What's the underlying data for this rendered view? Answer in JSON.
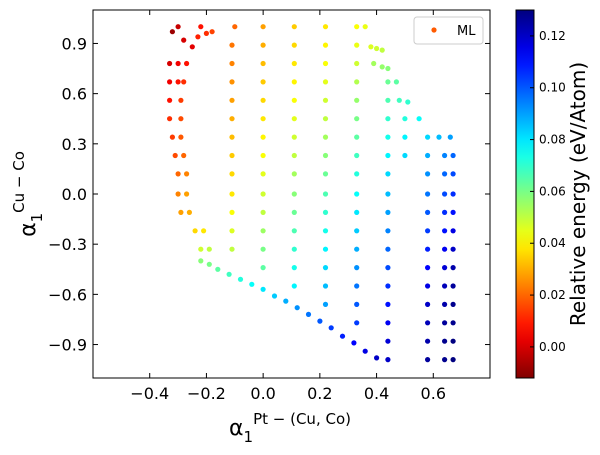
{
  "chart_data": {
    "type": "scatter",
    "xlim": [
      -0.6,
      0.8
    ],
    "ylim": [
      -1.1,
      1.1
    ],
    "xticks": [
      -0.4,
      -0.2,
      0.0,
      0.2,
      0.4,
      0.6
    ],
    "xtick_labels": [
      "−0.4",
      "−0.2",
      "0.0",
      "0.2",
      "0.4",
      "0.6"
    ],
    "yticks": [
      -0.9,
      -0.6,
      -0.3,
      0.0,
      0.3,
      0.6,
      0.9
    ],
    "ytick_labels": [
      "−0.9",
      "−0.6",
      "−0.3",
      "0.0",
      "0.3",
      "0.6",
      "0.9"
    ],
    "xlabel_base": "α",
    "xlabel_sub": "1",
    "xlabel_sup": "Pt − (Cu, Co)",
    "ylabel_base": "α",
    "ylabel_sub": "1",
    "ylabel_sup": "Cu − Co",
    "legend": {
      "label": "ML",
      "placement": "top-right"
    },
    "colorbar": {
      "label": "Relative energy (eV/Atom)",
      "colormap": "jet_r",
      "min": -0.012,
      "max": 0.13,
      "ticks": [
        0.0,
        0.02,
        0.04,
        0.06,
        0.08,
        0.1,
        0.12
      ],
      "tick_labels": [
        "0.00",
        "0.02",
        "0.04",
        "0.06",
        "0.08",
        "0.10",
        "0.12"
      ]
    },
    "marker_color_legend": "#ff5a00",
    "grid": false,
    "series": [
      {
        "points": [
          [
            -0.32,
            0.97,
            -0.008
          ],
          [
            -0.3,
            1.0,
            -0.002
          ],
          [
            -0.28,
            0.92,
            0.0
          ],
          [
            -0.25,
            0.88,
            0.002
          ],
          [
            -0.22,
            1.0,
            0.008
          ],
          [
            -0.2,
            0.96,
            0.012
          ],
          [
            -0.18,
            0.97,
            0.015
          ],
          [
            -0.23,
            0.94,
            0.01
          ],
          [
            -0.33,
            0.78,
            0.0
          ],
          [
            -0.3,
            0.78,
            0.004
          ],
          [
            -0.27,
            0.78,
            0.008
          ],
          [
            -0.33,
            0.67,
            0.004
          ],
          [
            -0.3,
            0.67,
            0.008
          ],
          [
            -0.28,
            0.67,
            0.012
          ],
          [
            -0.33,
            0.56,
            0.008
          ],
          [
            -0.29,
            0.56,
            0.014
          ],
          [
            -0.33,
            0.45,
            0.012
          ],
          [
            -0.29,
            0.45,
            0.016
          ],
          [
            -0.32,
            0.34,
            0.014
          ],
          [
            -0.29,
            0.34,
            0.018
          ],
          [
            -0.31,
            0.23,
            0.016
          ],
          [
            -0.28,
            0.23,
            0.02
          ],
          [
            -0.3,
            0.12,
            0.02
          ],
          [
            -0.27,
            0.12,
            0.024
          ],
          [
            -0.3,
            0.0,
            0.024
          ],
          [
            -0.27,
            0.0,
            0.028
          ],
          [
            -0.29,
            -0.11,
            0.028
          ],
          [
            -0.26,
            -0.11,
            0.03
          ],
          [
            -0.24,
            -0.22,
            0.036
          ],
          [
            -0.21,
            -0.22,
            0.038
          ],
          [
            -0.22,
            -0.33,
            0.048
          ],
          [
            -0.19,
            -0.33,
            0.05
          ],
          [
            -0.1,
            1.0,
            0.02
          ],
          [
            -0.11,
            0.89,
            0.022
          ],
          [
            -0.11,
            0.78,
            0.024
          ],
          [
            -0.11,
            0.67,
            0.026
          ],
          [
            -0.11,
            0.56,
            0.028
          ],
          [
            -0.11,
            0.45,
            0.03
          ],
          [
            -0.11,
            0.34,
            0.032
          ],
          [
            -0.11,
            0.23,
            0.034
          ],
          [
            -0.11,
            0.12,
            0.036
          ],
          [
            -0.11,
            0.0,
            0.038
          ],
          [
            -0.11,
            -0.11,
            0.042
          ],
          [
            -0.11,
            -0.22,
            0.046
          ],
          [
            -0.11,
            -0.33,
            0.05
          ],
          [
            0.0,
            1.0,
            0.028
          ],
          [
            0.0,
            0.89,
            0.03
          ],
          [
            0.0,
            0.78,
            0.032
          ],
          [
            0.0,
            0.67,
            0.034
          ],
          [
            0.0,
            0.56,
            0.036
          ],
          [
            0.0,
            0.45,
            0.038
          ],
          [
            0.0,
            0.34,
            0.04
          ],
          [
            0.0,
            0.23,
            0.042
          ],
          [
            0.0,
            0.12,
            0.045
          ],
          [
            0.0,
            0.0,
            0.048
          ],
          [
            0.0,
            -0.11,
            0.05
          ],
          [
            0.0,
            -0.22,
            0.055
          ],
          [
            0.0,
            -0.33,
            0.06
          ],
          [
            0.0,
            -0.44,
            0.064
          ],
          [
            0.11,
            1.0,
            0.034
          ],
          [
            0.11,
            0.89,
            0.036
          ],
          [
            0.11,
            0.78,
            0.038
          ],
          [
            0.11,
            0.67,
            0.04
          ],
          [
            0.11,
            0.56,
            0.042
          ],
          [
            0.11,
            0.45,
            0.045
          ],
          [
            0.11,
            0.34,
            0.048
          ],
          [
            0.11,
            0.23,
            0.05
          ],
          [
            0.11,
            0.12,
            0.054
          ],
          [
            0.11,
            0.0,
            0.058
          ],
          [
            0.11,
            -0.11,
            0.062
          ],
          [
            0.11,
            -0.22,
            0.066
          ],
          [
            0.11,
            -0.33,
            0.07
          ],
          [
            0.11,
            -0.44,
            0.074
          ],
          [
            0.11,
            -0.55,
            0.078
          ],
          [
            0.22,
            1.0,
            0.038
          ],
          [
            0.22,
            0.89,
            0.04
          ],
          [
            0.22,
            0.78,
            0.042
          ],
          [
            0.22,
            0.67,
            0.045
          ],
          [
            0.22,
            0.56,
            0.048
          ],
          [
            0.22,
            0.45,
            0.05
          ],
          [
            0.22,
            0.34,
            0.054
          ],
          [
            0.22,
            0.23,
            0.058
          ],
          [
            0.22,
            0.12,
            0.062
          ],
          [
            0.22,
            0.0,
            0.066
          ],
          [
            0.22,
            -0.11,
            0.07
          ],
          [
            0.22,
            -0.22,
            0.074
          ],
          [
            0.22,
            -0.33,
            0.078
          ],
          [
            0.22,
            -0.44,
            0.082
          ],
          [
            0.22,
            -0.55,
            0.086
          ],
          [
            0.22,
            -0.66,
            0.09
          ],
          [
            0.33,
            1.0,
            0.042
          ],
          [
            0.33,
            0.89,
            0.044
          ],
          [
            0.33,
            0.78,
            0.048
          ],
          [
            0.33,
            0.67,
            0.052
          ],
          [
            0.33,
            0.56,
            0.056
          ],
          [
            0.33,
            0.45,
            0.06
          ],
          [
            0.33,
            0.34,
            0.064
          ],
          [
            0.33,
            0.23,
            0.068
          ],
          [
            0.33,
            0.12,
            0.072
          ],
          [
            0.33,
            0.0,
            0.076
          ],
          [
            0.33,
            -0.11,
            0.08
          ],
          [
            0.33,
            -0.22,
            0.084
          ],
          [
            0.33,
            -0.33,
            0.088
          ],
          [
            0.33,
            -0.44,
            0.092
          ],
          [
            0.33,
            -0.55,
            0.096
          ],
          [
            0.33,
            -0.66,
            0.1
          ],
          [
            0.33,
            -0.77,
            0.104
          ],
          [
            0.36,
            1.0,
            0.044
          ],
          [
            0.38,
            0.88,
            0.046
          ],
          [
            0.4,
            0.87,
            0.048
          ],
          [
            0.42,
            0.86,
            0.05
          ],
          [
            0.39,
            0.78,
            0.054
          ],
          [
            0.42,
            0.76,
            0.056
          ],
          [
            0.44,
            0.75,
            0.058
          ],
          [
            0.44,
            0.67,
            0.062
          ],
          [
            0.47,
            0.67,
            0.064
          ],
          [
            0.44,
            0.56,
            0.066
          ],
          [
            0.48,
            0.56,
            0.068
          ],
          [
            0.51,
            0.55,
            0.07
          ],
          [
            0.44,
            0.45,
            0.07
          ],
          [
            0.5,
            0.45,
            0.072
          ],
          [
            0.55,
            0.45,
            0.076
          ],
          [
            0.44,
            0.34,
            0.074
          ],
          [
            0.5,
            0.34,
            0.078
          ],
          [
            0.58,
            0.34,
            0.082
          ],
          [
            0.62,
            0.34,
            0.086
          ],
          [
            0.66,
            0.34,
            0.09
          ],
          [
            0.44,
            0.23,
            0.078
          ],
          [
            0.5,
            0.23,
            0.082
          ],
          [
            0.58,
            0.23,
            0.088
          ],
          [
            0.64,
            0.23,
            0.094
          ],
          [
            0.67,
            0.23,
            0.098
          ],
          [
            0.44,
            0.12,
            0.082
          ],
          [
            0.58,
            0.12,
            0.092
          ],
          [
            0.64,
            0.12,
            0.098
          ],
          [
            0.67,
            0.12,
            0.102
          ],
          [
            0.44,
            0.0,
            0.086
          ],
          [
            0.58,
            0.0,
            0.096
          ],
          [
            0.64,
            0.0,
            0.102
          ],
          [
            0.67,
            0.0,
            0.106
          ],
          [
            0.44,
            -0.11,
            0.09
          ],
          [
            0.58,
            -0.11,
            0.1
          ],
          [
            0.64,
            -0.11,
            0.106
          ],
          [
            0.67,
            -0.11,
            0.11
          ],
          [
            0.44,
            -0.22,
            0.094
          ],
          [
            0.58,
            -0.22,
            0.104
          ],
          [
            0.64,
            -0.22,
            0.11
          ],
          [
            0.67,
            -0.22,
            0.116
          ],
          [
            0.44,
            -0.33,
            0.098
          ],
          [
            0.58,
            -0.33,
            0.108
          ],
          [
            0.64,
            -0.33,
            0.114
          ],
          [
            0.67,
            -0.33,
            0.12
          ],
          [
            0.44,
            -0.44,
            0.102
          ],
          [
            0.58,
            -0.44,
            0.112
          ],
          [
            0.64,
            -0.44,
            0.118
          ],
          [
            0.67,
            -0.44,
            0.124
          ],
          [
            0.44,
            -0.55,
            0.106
          ],
          [
            0.58,
            -0.55,
            0.116
          ],
          [
            0.64,
            -0.55,
            0.122
          ],
          [
            0.67,
            -0.55,
            0.126
          ],
          [
            0.44,
            -0.66,
            0.11
          ],
          [
            0.58,
            -0.66,
            0.12
          ],
          [
            0.64,
            -0.66,
            0.124
          ],
          [
            0.67,
            -0.66,
            0.128
          ],
          [
            0.44,
            -0.77,
            0.114
          ],
          [
            0.58,
            -0.77,
            0.122
          ],
          [
            0.64,
            -0.77,
            0.126
          ],
          [
            0.67,
            -0.77,
            0.128
          ],
          [
            0.44,
            -0.88,
            0.118
          ],
          [
            0.58,
            -0.88,
            0.124
          ],
          [
            0.64,
            -0.88,
            0.128
          ],
          [
            0.67,
            -0.88,
            0.13
          ],
          [
            0.44,
            -0.99,
            0.12
          ],
          [
            0.58,
            -0.99,
            0.126
          ],
          [
            0.64,
            -0.99,
            0.128
          ],
          [
            0.67,
            -0.99,
            0.13
          ],
          [
            -0.22,
            -0.4,
            0.058
          ],
          [
            -0.19,
            -0.42,
            0.06
          ],
          [
            -0.16,
            -0.45,
            0.064
          ],
          [
            -0.12,
            -0.48,
            0.068
          ],
          [
            -0.08,
            -0.51,
            0.072
          ],
          [
            -0.04,
            -0.54,
            0.076
          ],
          [
            0.0,
            -0.57,
            0.08
          ],
          [
            0.04,
            -0.61,
            0.084
          ],
          [
            0.08,
            -0.64,
            0.088
          ],
          [
            0.12,
            -0.68,
            0.092
          ],
          [
            0.16,
            -0.72,
            0.096
          ],
          [
            0.2,
            -0.76,
            0.1
          ],
          [
            0.24,
            -0.8,
            0.104
          ],
          [
            0.28,
            -0.85,
            0.108
          ],
          [
            0.32,
            -0.89,
            0.112
          ],
          [
            0.36,
            -0.94,
            0.116
          ],
          [
            0.4,
            -0.98,
            0.12
          ]
        ]
      }
    ]
  }
}
